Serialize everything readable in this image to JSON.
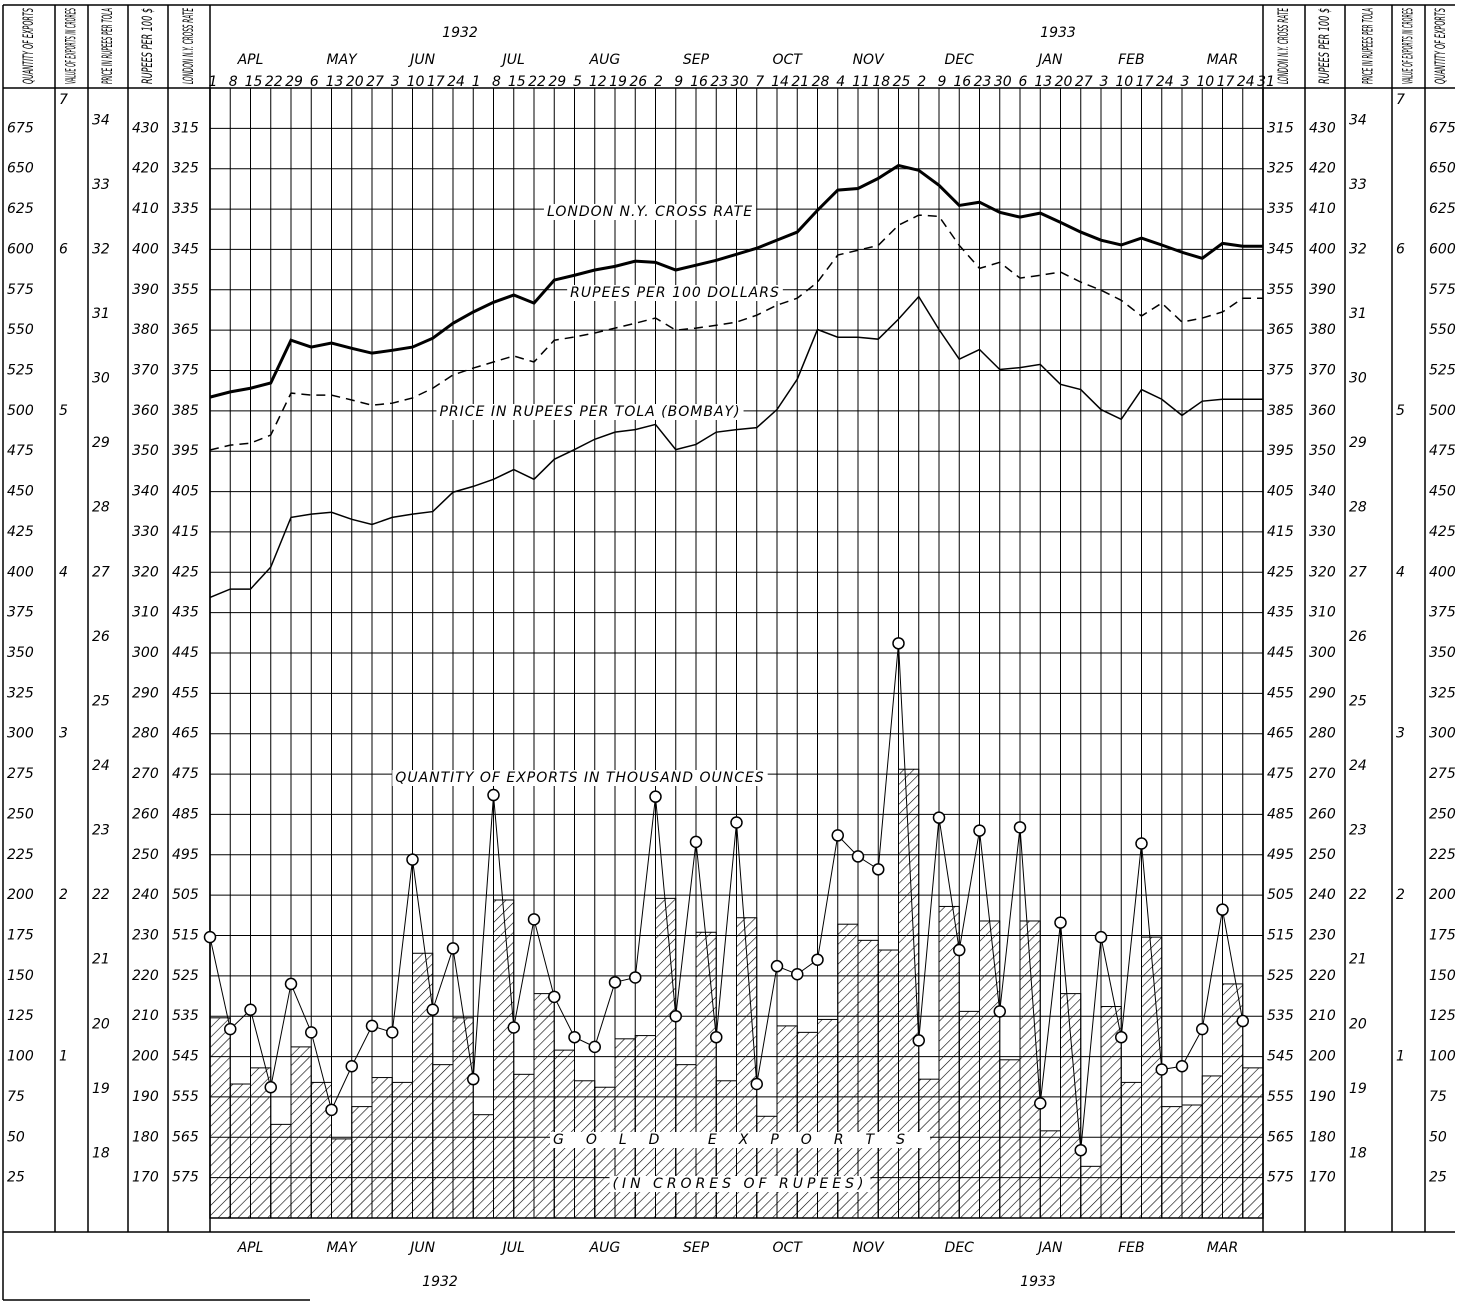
{
  "chart_data": {
    "type": "line",
    "years": [
      "1932",
      "1933"
    ],
    "months": [
      "APL",
      "MAY",
      "JUN",
      "JUL",
      "AUG",
      "SEP",
      "OCT",
      "NOV",
      "DEC",
      "JAN",
      "FEB",
      "MAR"
    ],
    "weeks": [
      1,
      8,
      15,
      22,
      29,
      6,
      13,
      20,
      27,
      3,
      10,
      17,
      24,
      1,
      8,
      15,
      22,
      29,
      5,
      12,
      19,
      26,
      2,
      9,
      16,
      23,
      30,
      7,
      14,
      21,
      28,
      4,
      11,
      18,
      25,
      2,
      9,
      16,
      23,
      30,
      6,
      13,
      20,
      27,
      3,
      10,
      17,
      24,
      3,
      10,
      17,
      24,
      31
    ],
    "grid": true,
    "axes": [
      {
        "label": "QUANTITY OF EXPORTS",
        "lim": [
          0,
          700
        ],
        "ticks": [
          25,
          50,
          75,
          100,
          125,
          150,
          175,
          200,
          225,
          250,
          275,
          300,
          325,
          350,
          375,
          400,
          425,
          450,
          475,
          500,
          525,
          550,
          575,
          600,
          625,
          650,
          675
        ]
      },
      {
        "label": "VALUE OF EXPORTS IN CRORES",
        "lim": [
          0,
          7
        ],
        "ticks": [
          1,
          2,
          3,
          4,
          5,
          6,
          7
        ]
      },
      {
        "label": "PRICE IN RUPEES PER TOLA",
        "lim": [
          17,
          34.5
        ],
        "ticks": [
          18,
          19,
          20,
          21,
          22,
          23,
          24,
          25,
          26,
          27,
          28,
          29,
          30,
          31,
          32,
          33,
          34
        ]
      },
      {
        "label": "RUPEES PER 100 $",
        "lim": [
          160,
          440
        ],
        "ticks": [
          170,
          180,
          190,
          200,
          210,
          220,
          230,
          240,
          250,
          260,
          270,
          280,
          290,
          300,
          310,
          320,
          330,
          340,
          350,
          360,
          370,
          380,
          390,
          400,
          410,
          420,
          430
        ]
      },
      {
        "label": "LONDON N.Y. CROSS RATE",
        "lim": [
          585,
          305
        ],
        "ticks": [
          315,
          325,
          335,
          345,
          355,
          365,
          375,
          385,
          395,
          405,
          415,
          425,
          435,
          445,
          455,
          465,
          475,
          485,
          495,
          505,
          515,
          525,
          535,
          545,
          555,
          565,
          575
        ]
      }
    ],
    "series": [
      {
        "name": "LONDON N.Y. CROSS RATE",
        "axis": 4,
        "color": "#000000",
        "width": 3,
        "style": "solid",
        "values": [
          381.6,
          380.3,
          379.4,
          378.1,
          367.5,
          369.2,
          368.2,
          369.5,
          370.7,
          370,
          369.2,
          367,
          363.3,
          360.5,
          358.1,
          356.3,
          358.3,
          352.6,
          351.4,
          350.1,
          349.2,
          347.9,
          348.2,
          350.1,
          348.9,
          347.7,
          346.2,
          344.7,
          342.7,
          340.7,
          335.3,
          330.3,
          329.9,
          327.4,
          324.2,
          325.4,
          329.1,
          334.1,
          333.3,
          335.8,
          337,
          336,
          338.3,
          340.7,
          342.7,
          343.9,
          342.2,
          343.9,
          345.7,
          347.2,
          343.5,
          344.2,
          344.2
        ]
      },
      {
        "name": "RUPEES PER 100 DOLLARS",
        "axis": 3,
        "color": "#000000",
        "width": 1.5,
        "style": "dashed",
        "values": [
          350.3,
          351.5,
          352,
          354,
          364.4,
          363.9,
          363.9,
          362.7,
          361.4,
          361.9,
          363.2,
          365.6,
          368.9,
          370.6,
          372.1,
          373.6,
          372.1,
          377.5,
          378.3,
          379.3,
          380.5,
          381.7,
          383,
          380,
          380.5,
          381.2,
          382,
          383.7,
          386.2,
          387.9,
          391.9,
          398.6,
          399.8,
          401,
          406,
          408.5,
          408.2,
          401,
          395.3,
          396.8,
          392.9,
          393.6,
          394.4,
          391.9,
          389.9,
          387.4,
          383.5,
          386.7,
          382,
          383,
          384.5,
          387.9,
          387.9
        ]
      },
      {
        "name": "PRICE IN RUPEES PER TOLA (BOMBAY)",
        "axis": 2,
        "color": "#000000",
        "width": 1.5,
        "style": "solid",
        "values": [
          26.61,
          26.74,
          26.74,
          27.08,
          27.85,
          27.9,
          27.93,
          27.82,
          27.74,
          27.85,
          27.9,
          27.94,
          28.24,
          28.33,
          28.44,
          28.59,
          28.44,
          28.75,
          28.9,
          29.06,
          29.17,
          29.21,
          29.29,
          28.9,
          28.98,
          29.17,
          29.21,
          29.24,
          29.52,
          29.99,
          30.76,
          30.64,
          30.64,
          30.61,
          30.92,
          31.27,
          30.76,
          30.3,
          30.45,
          30.14,
          30.17,
          30.22,
          29.91,
          29.83,
          29.52,
          29.37,
          29.83,
          29.68,
          29.43,
          29.65,
          29.68,
          29.68,
          29.68
        ]
      },
      {
        "name": "QUANTITY OF EXPORTS IN THOUSAND OUNCES",
        "axis": 0,
        "color": "#000000",
        "width": 1,
        "style": "markers",
        "values": [
          174,
          117,
          129,
          81,
          145,
          115,
          67,
          94,
          119,
          115,
          222,
          129,
          167,
          86,
          262,
          118,
          185,
          137,
          112,
          106,
          146,
          149,
          261,
          125,
          233,
          112,
          245,
          83,
          156,
          151,
          160,
          237,
          224,
          216,
          356,
          110,
          248,
          166,
          240,
          128,
          242,
          71,
          183,
          42,
          174,
          112,
          232,
          92,
          94,
          117,
          191,
          122,
          null
        ]
      },
      {
        "name": "GOLD EXPORTS",
        "type": "bar",
        "axis": 1,
        "color": "#000000",
        "width": 1,
        "style": "hatched",
        "values": [
          1.24,
          0.83,
          0.93,
          0.58,
          1.06,
          0.84,
          0.49,
          0.69,
          0.87,
          0.84,
          1.64,
          0.95,
          1.24,
          0.64,
          1.97,
          0.89,
          1.39,
          1.04,
          0.85,
          0.81,
          1.11,
          1.13,
          1.98,
          0.95,
          1.77,
          0.85,
          1.86,
          0.63,
          1.19,
          1.15,
          1.23,
          1.82,
          1.72,
          1.66,
          2.78,
          0.86,
          1.93,
          1.28,
          1.84,
          0.98,
          1.84,
          0.54,
          1.39,
          0.32,
          1.31,
          0.84,
          1.74,
          0.69,
          0.7,
          0.88,
          1.45,
          0.93,
          null
        ]
      }
    ],
    "annotations": [
      "(IN CRORES OF RUPEES)"
    ]
  }
}
